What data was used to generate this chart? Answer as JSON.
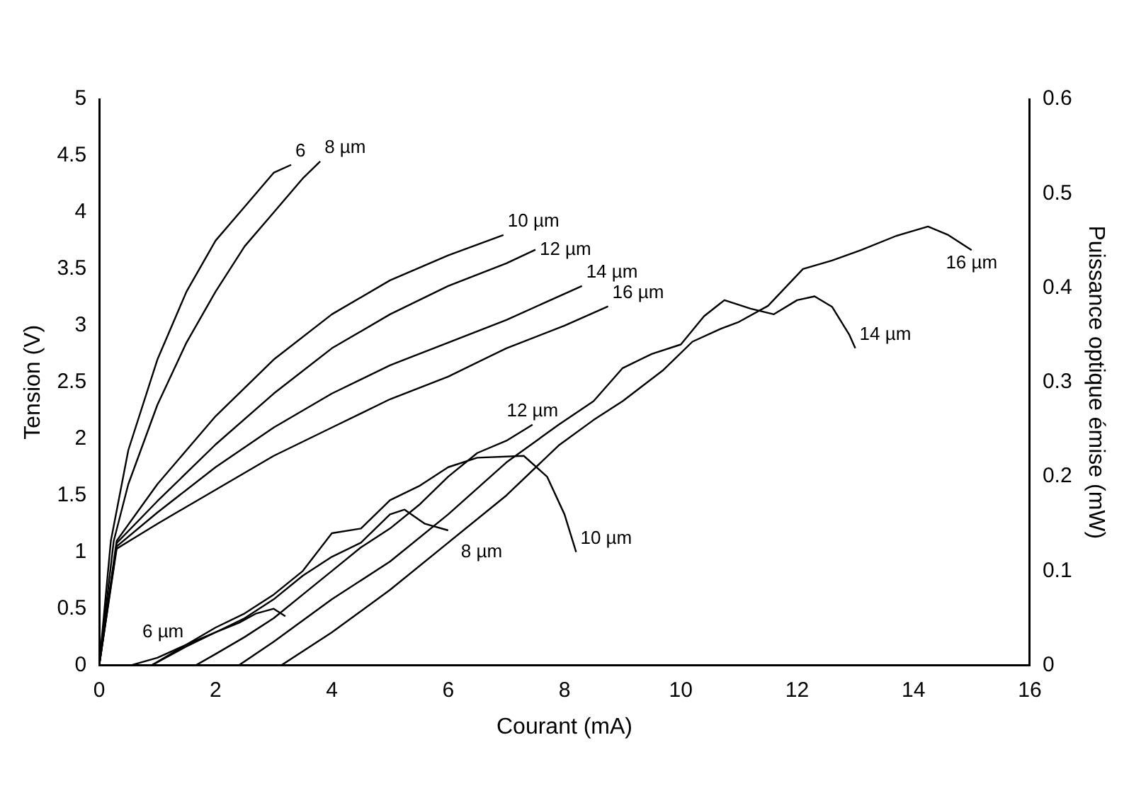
{
  "chart_data": {
    "type": "line",
    "xlabel": "Courant (mA)",
    "ylabel": "Tension (V)",
    "y2label": "Puissance optique émise (mW)",
    "xlim": [
      0,
      16
    ],
    "xticks": [
      0,
      2,
      4,
      6,
      8,
      10,
      12,
      14,
      16
    ],
    "ylim": [
      0,
      5
    ],
    "yticks": [
      0,
      0.5,
      1,
      1.5,
      2,
      2.5,
      3,
      3.5,
      4,
      4.5,
      5
    ],
    "y2lim": [
      0,
      0.6
    ],
    "y2ticks": [
      0,
      0.1,
      0.2,
      0.3,
      0.4,
      0.5,
      0.6
    ],
    "grid": false,
    "legend": false,
    "marker": "none",
    "line_style": "solid",
    "series": [
      {
        "name": "6",
        "color": "#000000",
        "x": [
          0,
          0.2,
          0.5,
          1,
          1.5,
          2,
          2.5,
          3,
          3.3
        ],
        "values": [
          0,
          1.1,
          1.9,
          2.7,
          3.3,
          3.75,
          4.05,
          4.35,
          4.42
        ]
      },
      {
        "name": "8 µm",
        "color": "#000000",
        "x": [
          0,
          0.25,
          0.5,
          1,
          1.5,
          2,
          2.5,
          3,
          3.5,
          3.8
        ],
        "values": [
          0,
          1.1,
          1.6,
          2.3,
          2.85,
          3.3,
          3.7,
          4.0,
          4.3,
          4.45
        ]
      },
      {
        "name": "10 µm",
        "color": "#000000",
        "x": [
          0,
          0.3,
          1,
          2,
          3,
          4,
          5,
          6,
          6.95
        ],
        "values": [
          0,
          1.1,
          1.6,
          2.2,
          2.7,
          3.1,
          3.4,
          3.62,
          3.8
        ]
      },
      {
        "name": "12 µm",
        "color": "#000000",
        "x": [
          0,
          0.3,
          1,
          2,
          3,
          4,
          5,
          6,
          7,
          7.5
        ],
        "values": [
          0,
          1.08,
          1.45,
          1.95,
          2.4,
          2.8,
          3.1,
          3.35,
          3.55,
          3.67
        ]
      },
      {
        "name": "14 µm",
        "color": "#000000",
        "x": [
          0,
          0.3,
          1,
          2,
          3,
          4,
          5,
          6,
          7,
          8.3
        ],
        "values": [
          0,
          1.05,
          1.35,
          1.75,
          2.1,
          2.4,
          2.65,
          2.85,
          3.05,
          3.35
        ]
      },
      {
        "name": "16 µm",
        "color": "#000000",
        "x": [
          0,
          0.3,
          1,
          2,
          3,
          4,
          5,
          6,
          7,
          8,
          8.75
        ],
        "values": [
          0,
          1.03,
          1.25,
          1.55,
          1.85,
          2.1,
          2.35,
          2.55,
          2.8,
          3.0,
          3.17
        ]
      },
      {
        "name": "6 µm",
        "color": "#000000",
        "axis": "y2",
        "x": [
          0.54,
          1,
          1.5,
          2,
          2.4,
          2.7,
          3.0,
          3.2
        ],
        "values": [
          0,
          0.008,
          0.022,
          0.035,
          0.045,
          0.055,
          0.06,
          0.052
        ]
      },
      {
        "name": "8 µm",
        "color": "#000000",
        "axis": "y2",
        "x": [
          0.9,
          1.5,
          2,
          2.5,
          3,
          3.5,
          4,
          4.5,
          5,
          5.25,
          5.6,
          6.0
        ],
        "values": [
          0,
          0.02,
          0.035,
          0.05,
          0.07,
          0.095,
          0.115,
          0.13,
          0.16,
          0.165,
          0.15,
          0.143
        ]
      },
      {
        "name": "10 µm",
        "color": "#000000",
        "axis": "y2",
        "x": [
          0.9,
          1.5,
          2,
          2.5,
          3,
          3.5,
          4,
          4.5,
          5,
          5.5,
          6,
          6.5,
          7.3,
          7.7,
          8,
          8.2
        ],
        "values": [
          0,
          0.022,
          0.04,
          0.055,
          0.075,
          0.1,
          0.14,
          0.145,
          0.175,
          0.19,
          0.21,
          0.22,
          0.222,
          0.2,
          0.16,
          0.12
        ]
      },
      {
        "name": "12 µm",
        "color": "#000000",
        "axis": "y2",
        "x": [
          1.66,
          2,
          2.5,
          3,
          3.5,
          4,
          4.5,
          5,
          5.5,
          6,
          6.5,
          7,
          7.45
        ],
        "values": [
          0,
          0.012,
          0.03,
          0.05,
          0.075,
          0.1,
          0.125,
          0.145,
          0.17,
          0.2,
          0.225,
          0.238,
          0.255
        ]
      },
      {
        "name": "14 µm",
        "color": "#000000",
        "axis": "y2",
        "x": [
          2.4,
          3,
          4,
          5,
          6,
          7,
          7.9,
          8.5,
          9,
          9.5,
          10,
          10.4,
          10.75,
          11.2,
          11.6,
          12,
          12.3,
          12.6,
          12.9,
          13.0
        ],
        "values": [
          0,
          0.025,
          0.07,
          0.11,
          0.16,
          0.215,
          0.255,
          0.28,
          0.315,
          0.33,
          0.34,
          0.37,
          0.387,
          0.378,
          0.372,
          0.387,
          0.391,
          0.38,
          0.35,
          0.336
        ]
      },
      {
        "name": "16 µm",
        "color": "#000000",
        "axis": "y2",
        "x": [
          3.13,
          4,
          5,
          6,
          7,
          7.9,
          8.5,
          9,
          9.7,
          10.2,
          10.7,
          11,
          11.5,
          12.1,
          12.6,
          13.1,
          13.7,
          14.25,
          14.6,
          15.0
        ],
        "values": [
          0,
          0.035,
          0.08,
          0.13,
          0.18,
          0.233,
          0.26,
          0.28,
          0.313,
          0.343,
          0.357,
          0.364,
          0.381,
          0.42,
          0.429,
          0.44,
          0.455,
          0.465,
          0.456,
          0.44
        ]
      }
    ]
  }
}
